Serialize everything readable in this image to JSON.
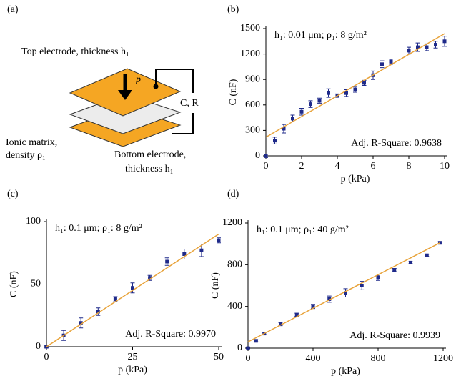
{
  "diagram": {
    "panel_label": "(a)",
    "top": "Top electrode, thickness h₁",
    "force": "p",
    "circuit": "C, R",
    "matrix": [
      "Ionic matrix,",
      "density ρ₁"
    ],
    "bottom": [
      "Bottom electrode,",
      "thickness h₁"
    ]
  },
  "chart_data": [
    {
      "type": "scatter",
      "panel_label": "(b)",
      "title": "h₁: 0.01 μm;  ρ₁: 8 g/m²",
      "annotation": "Adj. R-Square: 0.9638",
      "x_label": "p (kPa)",
      "y_label": "C (nF)",
      "x": [
        0,
        0.5,
        1,
        1.5,
        2,
        2.5,
        3,
        3.5,
        4,
        4.5,
        5,
        5.5,
        6,
        6.5,
        7,
        8,
        8.5,
        9,
        9.5,
        10
      ],
      "series": [
        {
          "color": "#1f2a8a",
          "values": [
            0,
            180,
            320,
            440,
            520,
            610,
            650,
            740,
            710,
            740,
            780,
            860,
            950,
            1080,
            1110,
            1240,
            1280,
            1280,
            1310,
            1350
          ],
          "errors": [
            20,
            40,
            50,
            40,
            40,
            40,
            30,
            50,
            20,
            40,
            30,
            30,
            50,
            40,
            30,
            40,
            50,
            40,
            40,
            60
          ]
        }
      ],
      "fit": {
        "color": "#e8a33a",
        "x": [
          0,
          10
        ],
        "values": [
          220,
          1440
        ]
      },
      "xlim": [
        0,
        10
      ],
      "xticks": [
        0,
        2,
        4,
        6,
        8,
        10
      ],
      "ylim": [
        0,
        1500
      ],
      "yticks": [
        0,
        300,
        600,
        900,
        1200,
        1500
      ]
    },
    {
      "type": "scatter",
      "panel_label": "(c)",
      "title": "h₁: 0.1 μm;  ρ₁: 8 g/m²",
      "annotation": "Adj. R-Square: 0.9970",
      "x_label": "p (kPa)",
      "y_label": "C (nF)",
      "x": [
        0,
        5,
        10,
        15,
        20,
        25,
        30,
        35,
        40,
        45,
        50
      ],
      "series": [
        {
          "color": "#1f2a8a",
          "values": [
            0,
            9,
            19,
            28,
            38,
            47,
            55,
            68,
            74,
            77,
            85
          ],
          "errors": [
            1,
            4,
            4,
            3,
            2,
            4,
            2,
            3,
            4,
            5,
            2
          ]
        }
      ],
      "fit": {
        "color": "#e8a33a",
        "x": [
          0,
          50
        ],
        "values": [
          0,
          90
        ]
      },
      "xlim": [
        0,
        50
      ],
      "xticks": [
        0,
        25,
        50
      ],
      "ylim": [
        0,
        100
      ],
      "yticks": [
        0,
        50,
        100
      ]
    },
    {
      "type": "scatter",
      "panel_label": "(d)",
      "title": "h₁: 0.1 μm;  ρ₁: 40 g/m²",
      "annotation": "Adj. R-Square: 0.9939",
      "x_label": "p (kPa)",
      "y_label": "C (nF)",
      "x": [
        0,
        50,
        100,
        200,
        300,
        400,
        500,
        600,
        700,
        800,
        900,
        1000,
        1100,
        1180
      ],
      "series": [
        {
          "color": "#1f2a8a",
          "values": [
            0,
            70,
            140,
            230,
            320,
            400,
            470,
            530,
            600,
            680,
            750,
            820,
            890,
            1010
          ],
          "errors": [
            5,
            10,
            10,
            15,
            15,
            20,
            30,
            40,
            40,
            30,
            15,
            10,
            10,
            10
          ]
        }
      ],
      "fit": {
        "color": "#e8a33a",
        "x": [
          0,
          1180
        ],
        "values": [
          60,
          1010
        ]
      },
      "xlim": [
        0,
        1200
      ],
      "xticks": [
        0,
        400,
        800,
        1200
      ],
      "ylim": [
        0,
        1200
      ],
      "yticks": [
        0,
        400,
        800,
        1200
      ]
    }
  ]
}
